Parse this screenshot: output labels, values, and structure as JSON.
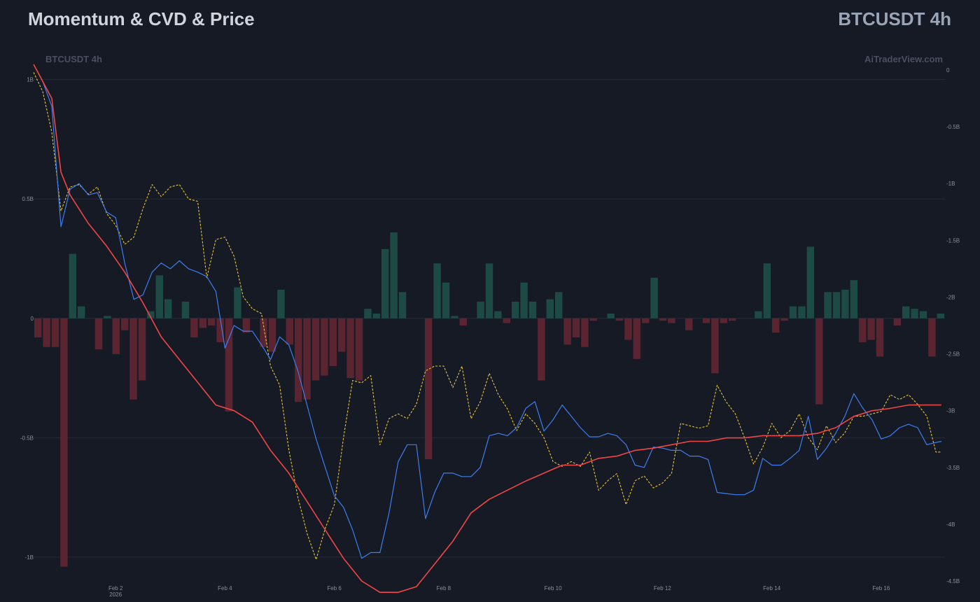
{
  "header": {
    "title": "Momentum & CVD & Price",
    "symbol": "BTCUSDT 4h"
  },
  "chart_data": {
    "type": "line",
    "watermark_left": "BTCUSDT 4h",
    "watermark_right": "AiTraderView.com",
    "x_ticks": [
      {
        "t": 4.5,
        "label": "Feb 2",
        "sub": "2026"
      },
      {
        "t": 10.5,
        "label": "Feb 4"
      },
      {
        "t": 16.5,
        "label": "Feb 6"
      },
      {
        "t": 22.5,
        "label": "Feb 8"
      },
      {
        "t": 28.5,
        "label": "Feb 10"
      },
      {
        "t": 34.5,
        "label": "Feb 12"
      },
      {
        "t": 40.5,
        "label": "Feb 14"
      },
      {
        "t": 46.5,
        "label": "Feb 16"
      }
    ],
    "left_axis": {
      "range": [
        -1.1,
        1.04
      ],
      "ticks": [
        {
          "v": 1,
          "label": "1B"
        },
        {
          "v": 0.5,
          "label": "0.5B"
        },
        {
          "v": 0,
          "label": "0"
        },
        {
          "v": -0.5,
          "label": "-0.5B"
        },
        {
          "v": -1,
          "label": "-1B"
        }
      ]
    },
    "right_axis": {
      "range": [
        -4.5,
        0
      ],
      "ticks": [
        {
          "v": 0,
          "label": "0"
        },
        {
          "v": -0.5,
          "label": "-0.5B"
        },
        {
          "v": -1,
          "label": "-1B"
        },
        {
          "v": -1.5,
          "label": "-1.5B"
        },
        {
          "v": -2,
          "label": "-2B"
        },
        {
          "v": -2.5,
          "label": "-2.5B"
        },
        {
          "v": -3,
          "label": "-3B"
        },
        {
          "v": -3.5,
          "label": "-3.5B"
        },
        {
          "v": -4,
          "label": "-4B"
        },
        {
          "v": -4.5,
          "label": "-4.5B"
        }
      ]
    },
    "colors": {
      "up": "#1d4a44",
      "down": "#5a2530",
      "cvd": "#3d7ef0",
      "price": "#e8c437",
      "momentum": "#f04646",
      "grid": "#262b38"
    },
    "series": [
      {
        "key": "delta",
        "type": "bar",
        "axis": "left",
        "values": [
          -0.08,
          -0.12,
          -0.12,
          -1.04,
          0.27,
          0.05,
          0,
          -0.13,
          0.01,
          -0.15,
          -0.05,
          -0.34,
          -0.26,
          0.03,
          0.18,
          0.08,
          0,
          0.07,
          -0.08,
          -0.04,
          -0.03,
          -0.1,
          -0.39,
          0.13,
          -0.06,
          0,
          -0.12,
          -0.14,
          0.12,
          -0.11,
          -0.35,
          -0.34,
          -0.26,
          -0.24,
          -0.2,
          -0.14,
          -0.25,
          -0.26,
          0.04,
          0.02,
          0.29,
          0.36,
          0.11,
          0,
          0,
          -0.59,
          0.23,
          0.15,
          0.01,
          -0.03,
          0,
          0.07,
          0.23,
          0.03,
          -0.02,
          0.07,
          0.15,
          0.07,
          -0.26,
          0.08,
          0.11,
          -0.11,
          -0.08,
          -0.12,
          -0.01,
          0,
          0.02,
          -0.01,
          -0.09,
          -0.17,
          -0.02,
          0.17,
          -0.01,
          -0.02,
          0,
          -0.05,
          0,
          -0.02,
          -0.23,
          -0.02,
          -0.01,
          0,
          0,
          0.03,
          0.23,
          -0.06,
          -0.01,
          0.05,
          0.05,
          0.3,
          -0.36,
          0.11,
          0.11,
          0.12,
          0.16,
          -0.1,
          -0.09,
          -0.16,
          0,
          -0.03,
          0.05,
          0.04,
          0.03,
          -0.16,
          0.02
        ]
      },
      {
        "key": "cvd",
        "type": "line",
        "axis": "right",
        "t": [
          0,
          0.5,
          1,
          1.5,
          2,
          2.5,
          3,
          3.5,
          4,
          4.5,
          5,
          5.5,
          6,
          6.5,
          7,
          7.5,
          8,
          8.5,
          9,
          9.5,
          10,
          10.5,
          11,
          11.5,
          12,
          12.5,
          13,
          13.5,
          14,
          14.5,
          15,
          15.5,
          16,
          16.5,
          17,
          17.5,
          18,
          18.5,
          19,
          19.5,
          20,
          20.5,
          21,
          21.5,
          22,
          22.5,
          23,
          23.5,
          24,
          24.5,
          25,
          25.5,
          26,
          26.5,
          27,
          27.5,
          28,
          28.5,
          29,
          29.5,
          30,
          30.5,
          31,
          31.5,
          32,
          32.5,
          33,
          33.5,
          34,
          34.5,
          35,
          35.5,
          36,
          36.5,
          37,
          37.5,
          38,
          38.5,
          39,
          39.5,
          40,
          40.5,
          41,
          41.5,
          42,
          42.5,
          43,
          43.5,
          44,
          44.5,
          45,
          45.5,
          46,
          46.5,
          47,
          47.5,
          48,
          48.5,
          49,
          49.5,
          49.8
        ],
        "values": [
          0.05,
          -0.1,
          -0.32,
          -1.38,
          -1.05,
          -1.0,
          -1.1,
          -1.08,
          -1.25,
          -1.3,
          -1.7,
          -2.02,
          -1.98,
          -1.78,
          -1.7,
          -1.75,
          -1.68,
          -1.75,
          -1.78,
          -1.82,
          -1.95,
          -2.45,
          -2.25,
          -2.3,
          -2.3,
          -2.42,
          -2.55,
          -2.35,
          -2.42,
          -2.65,
          -2.95,
          -3.25,
          -3.5,
          -3.75,
          -3.85,
          -4.05,
          -4.3,
          -4.25,
          -4.25,
          -3.9,
          -3.45,
          -3.3,
          -3.3,
          -3.95,
          -3.72,
          -3.55,
          -3.55,
          -3.58,
          -3.58,
          -3.5,
          -3.22,
          -3.2,
          -3.22,
          -3.15,
          -2.98,
          -2.92,
          -3.18,
          -3.08,
          -2.95,
          -3.05,
          -3.15,
          -3.23,
          -3.23,
          -3.2,
          -3.22,
          -3.3,
          -3.48,
          -3.5,
          -3.32,
          -3.33,
          -3.35,
          -3.35,
          -3.4,
          -3.4,
          -3.43,
          -3.72,
          -3.73,
          -3.74,
          -3.74,
          -3.7,
          -3.42,
          -3.48,
          -3.48,
          -3.42,
          -3.35,
          -3.05,
          -3.43,
          -3.33,
          -3.2,
          -3.05,
          -2.85,
          -2.98,
          -3.08,
          -3.25,
          -3.22,
          -3.15,
          -3.12,
          -3.15,
          -3.3,
          -3.28,
          -3.27
        ]
      },
      {
        "key": "price",
        "type": "line",
        "axis": "left",
        "style": "dashed",
        "t": [
          0,
          0.5,
          1,
          1.5,
          2,
          2.5,
          3,
          3.5,
          4,
          4.5,
          5,
          5.5,
          6,
          6.5,
          7,
          7.5,
          8,
          8.5,
          9,
          9.5,
          10,
          10.5,
          11,
          11.5,
          12,
          12.5,
          13,
          13.5,
          14,
          14.5,
          15,
          15.5,
          16,
          16.5,
          17,
          17.5,
          18,
          18.5,
          19,
          19.5,
          20,
          20.5,
          21,
          21.5,
          22,
          22.5,
          23,
          23.5,
          24,
          24.5,
          25,
          25.5,
          26,
          26.5,
          27,
          27.5,
          28,
          28.5,
          29,
          29.5,
          30,
          30.5,
          31,
          31.5,
          32,
          32.5,
          33,
          33.5,
          34,
          34.5,
          35,
          35.5,
          36,
          36.5,
          37,
          37.5,
          38,
          38.5,
          39,
          39.5,
          40,
          40.5,
          41,
          41.5,
          42,
          42.5,
          43,
          43.5,
          44,
          44.5,
          45,
          45.5,
          46,
          46.5,
          47,
          47.5,
          48,
          48.5,
          49,
          49.5,
          49.8
        ],
        "values": [
          1.03,
          0.95,
          0.78,
          0.45,
          0.55,
          0.56,
          0.52,
          0.55,
          0.44,
          0.39,
          0.31,
          0.34,
          0.46,
          0.56,
          0.51,
          0.55,
          0.56,
          0.5,
          0.49,
          0.17,
          0.33,
          0.34,
          0.26,
          0.09,
          0.04,
          0.02,
          -0.2,
          -0.28,
          -0.55,
          -0.75,
          -0.9,
          -1.01,
          -0.88,
          -0.78,
          -0.5,
          -0.26,
          -0.27,
          -0.24,
          -0.53,
          -0.42,
          -0.4,
          -0.42,
          -0.36,
          -0.22,
          -0.2,
          -0.2,
          -0.29,
          -0.2,
          -0.42,
          -0.35,
          -0.23,
          -0.32,
          -0.38,
          -0.47,
          -0.4,
          -0.44,
          -0.5,
          -0.6,
          -0.62,
          -0.6,
          -0.62,
          -0.56,
          -0.72,
          -0.68,
          -0.65,
          -0.78,
          -0.68,
          -0.66,
          -0.71,
          -0.69,
          -0.65,
          -0.44,
          -0.45,
          -0.46,
          -0.45,
          -0.28,
          -0.35,
          -0.4,
          -0.5,
          -0.61,
          -0.54,
          -0.44,
          -0.5,
          -0.47,
          -0.4,
          -0.5,
          -0.55,
          -0.45,
          -0.52,
          -0.48,
          -0.41,
          -0.41,
          -0.4,
          -0.39,
          -0.32,
          -0.34,
          -0.32,
          -0.36,
          -0.41,
          -0.56,
          -0.56
        ]
      },
      {
        "key": "momentum",
        "type": "line",
        "axis": "right",
        "t": [
          0,
          1,
          1.5,
          2,
          3,
          4,
          5,
          6,
          7,
          8,
          9,
          10,
          11,
          12,
          13,
          14,
          15,
          16,
          17,
          18,
          19,
          20,
          21,
          22,
          23,
          24,
          25,
          26,
          27,
          28,
          29,
          30,
          31,
          32,
          33,
          34,
          35,
          36,
          37,
          38,
          39,
          40,
          41,
          42,
          43,
          44,
          45,
          46,
          47,
          48,
          49,
          49.8
        ],
        "values": [
          0.05,
          -0.25,
          -0.9,
          -1.1,
          -1.35,
          -1.55,
          -1.78,
          -2.05,
          -2.35,
          -2.55,
          -2.75,
          -2.95,
          -3.0,
          -3.1,
          -3.35,
          -3.55,
          -3.8,
          -4.05,
          -4.3,
          -4.5,
          -4.6,
          -4.6,
          -4.55,
          -4.35,
          -4.15,
          -3.9,
          -3.78,
          -3.7,
          -3.62,
          -3.55,
          -3.48,
          -3.48,
          -3.42,
          -3.4,
          -3.35,
          -3.33,
          -3.3,
          -3.27,
          -3.27,
          -3.24,
          -3.24,
          -3.22,
          -3.22,
          -3.22,
          -3.2,
          -3.15,
          -3.05,
          -3.0,
          -2.98,
          -2.95,
          -2.95,
          -2.95
        ]
      }
    ]
  }
}
